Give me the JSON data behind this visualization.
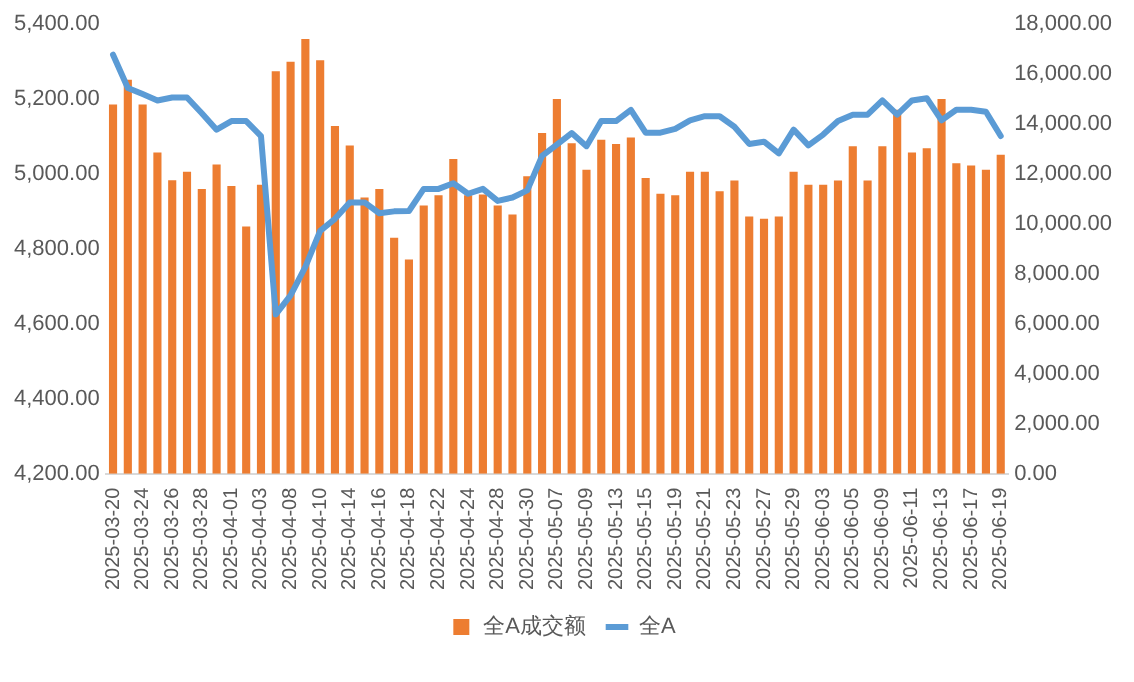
{
  "chart_data": {
    "type": "bar",
    "categories": [
      "2025-03-20",
      null,
      "2025-03-24",
      null,
      "2025-03-26",
      null,
      "2025-03-28",
      null,
      "2025-04-01",
      null,
      "2025-04-03",
      null,
      "2025-04-08",
      null,
      "2025-04-10",
      null,
      "2025-04-14",
      null,
      "2025-04-16",
      null,
      "2025-04-18",
      null,
      "2025-04-22",
      null,
      "2025-04-24",
      null,
      "2025-04-28",
      null,
      "2025-04-30",
      null,
      "2025-05-07",
      null,
      "2025-05-09",
      null,
      "2025-05-13",
      null,
      "2025-05-15",
      null,
      "2025-05-19",
      null,
      "2025-05-21",
      null,
      "2025-05-23",
      null,
      "2025-05-27",
      null,
      "2025-05-29",
      null,
      "2025-06-03",
      null,
      "2025-06-05",
      null,
      "2025-06-09",
      null,
      "2025-06-11",
      null,
      "2025-06-13",
      null,
      "2025-06-17",
      null,
      "2025-06-19"
    ],
    "series": [
      {
        "name": "全A成交额",
        "axis": "y2",
        "color": "#ed7d31",
        "values": [
          14780,
          15770,
          14780,
          12860,
          11750,
          12090,
          11400,
          12380,
          11520,
          9890,
          11570,
          16110,
          16490,
          17400,
          16550,
          13920,
          13140,
          11060,
          11400,
          9440,
          8570,
          10740,
          11150,
          12600,
          11150,
          11180,
          10740,
          10370,
          11910,
          13640,
          15000,
          13230,
          12170,
          13370,
          13200,
          13460,
          11840,
          11210,
          11150,
          12090,
          12090,
          11310,
          11740,
          10290,
          10200,
          10290,
          12090,
          11570,
          11570,
          11740,
          13110,
          11740,
          13110,
          14570,
          12860,
          13030,
          15000,
          12430,
          12340,
          12170,
          12770
        ]
      },
      {
        "name": "全A",
        "type": "line",
        "color": "#5b9bd5",
        "values": [
          5318,
          5229,
          5213,
          5196,
          5204,
          5204,
          5162,
          5118,
          5141,
          5141,
          5101,
          4625,
          4676,
          4752,
          4848,
          4880,
          4924,
          4924,
          4895,
          4900,
          4901,
          4960,
          4960,
          4975,
          4947,
          4960,
          4928,
          4937,
          4956,
          5048,
          5078,
          5109,
          5074,
          5141,
          5141,
          5171,
          5110,
          5110,
          5120,
          5143,
          5154,
          5154,
          5126,
          5080,
          5086,
          5055,
          5118,
          5076,
          5105,
          5141,
          5158,
          5158,
          5196,
          5158,
          5196,
          5202,
          5143,
          5171,
          5171,
          5166,
          5101
        ]
      }
    ],
    "ylim": [
      4200,
      5400
    ],
    "yticks": [
      {
        "value": 4200,
        "label": "4,200.00"
      },
      {
        "value": 4400,
        "label": "4,400.00"
      },
      {
        "value": 4600,
        "label": "4,600.00"
      },
      {
        "value": 4800,
        "label": "4,800.00"
      },
      {
        "value": 5000,
        "label": "5,000.00"
      },
      {
        "value": 5200,
        "label": "5,200.00"
      },
      {
        "value": 5400,
        "label": "5,400.00"
      }
    ],
    "y2lim": [
      0,
      18000
    ],
    "y2ticks": [
      {
        "value": 0,
        "label": "0.00"
      },
      {
        "value": 2000,
        "label": "2,000.00"
      },
      {
        "value": 4000,
        "label": "4,000.00"
      },
      {
        "value": 6000,
        "label": "6,000.00"
      },
      {
        "value": 8000,
        "label": "8,000.00"
      },
      {
        "value": 10000,
        "label": "10,000.00"
      },
      {
        "value": 12000,
        "label": "12,000.00"
      },
      {
        "value": 14000,
        "label": "14,000.00"
      },
      {
        "value": 16000,
        "label": "16,000.00"
      },
      {
        "value": 18000,
        "label": "18,000.00"
      }
    ],
    "grid": false,
    "legend": "bottom",
    "marker": "none",
    "line_style": "solid"
  }
}
